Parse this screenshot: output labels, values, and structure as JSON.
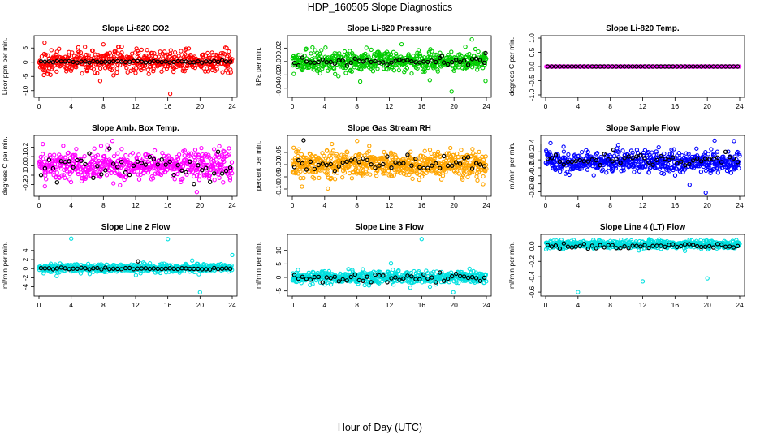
{
  "figure": {
    "title": "HDP_160505  Slope Diagnostics",
    "xlabel": "Hour of Day (UTC)"
  },
  "chart_data": [
    {
      "type": "scatter",
      "title": "Slope Li-820 CO2",
      "ylabel": "Licor ppm per min.",
      "xlim": [
        0,
        24
      ],
      "ylim": [
        -11.5,
        8.5
      ],
      "xticks": [
        0,
        4,
        8,
        12,
        16,
        20,
        24
      ],
      "yticks": [
        -10,
        -5,
        0,
        5
      ],
      "point_color": "#ff0000",
      "point_count": 520,
      "base": 0.3,
      "spread": 1.9,
      "outliers": [
        {
          "x": 0.7,
          "y": 6.9
        },
        {
          "x": 8.0,
          "y": 6.3
        },
        {
          "x": 0.6,
          "y": -4.5
        },
        {
          "x": 1.1,
          "y": -4.1
        },
        {
          "x": 3.4,
          "y": -3.2
        },
        {
          "x": 7.6,
          "y": -6.6
        },
        {
          "x": 12.0,
          "y": -3.8
        },
        {
          "x": 16.3,
          "y": -11.1
        },
        {
          "x": 18.6,
          "y": 4.8
        },
        {
          "x": 23.3,
          "y": 5.0
        }
      ],
      "summary_base": 0.2,
      "summary_spread": 0.2,
      "summary_spikes": []
    },
    {
      "type": "scatter",
      "title": "Slope Li-820 Pressure",
      "ylabel": "kPa per min.",
      "xlim": [
        0,
        24
      ],
      "ylim": [
        -0.05,
        0.035
      ],
      "xticks": [
        0,
        4,
        8,
        12,
        16,
        20,
        24
      ],
      "yticks": [
        -0.04,
        -0.02,
        0.0,
        0.02
      ],
      "point_color": "#00cc00",
      "point_count": 560,
      "base": 0.0,
      "spread": 0.007,
      "outliers": [
        {
          "x": 8.3,
          "y": -0.011
        },
        {
          "x": 8.4,
          "y": -0.03
        },
        {
          "x": 17.0,
          "y": -0.028
        },
        {
          "x": 19.7,
          "y": -0.045
        },
        {
          "x": 22.2,
          "y": 0.033
        },
        {
          "x": 23.9,
          "y": -0.029
        },
        {
          "x": 21.4,
          "y": 0.022
        },
        {
          "x": 2.5,
          "y": 0.021
        },
        {
          "x": 5.7,
          "y": -0.022
        }
      ],
      "summary_base": 0.0,
      "summary_spread": 0.003,
      "summary_spikes": [
        {
          "x": 23.9,
          "y": 0.0125
        },
        {
          "x": 18.5,
          "y": 0.008
        }
      ]
    },
    {
      "type": "scatter",
      "title": "Slope Li-820 Temp.",
      "ylabel": "degrees C per min.",
      "xlim": [
        0,
        24
      ],
      "ylim": [
        -1.0,
        1.0
      ],
      "xticks": [
        0,
        4,
        8,
        12,
        16,
        20,
        24
      ],
      "yticks": [
        -1.0,
        -0.5,
        0.0,
        0.5,
        1.0
      ],
      "point_color": "#ff00ff",
      "point_count": 220,
      "base": 0.0,
      "spread": 0.0,
      "outliers": [],
      "summary_base": 0.0,
      "summary_spread": 0.0,
      "summary_spikes": []
    },
    {
      "type": "scatter",
      "title": "Slope Amb. Box Temp.",
      "ylabel": "degrees C per min.",
      "xlim": [
        0,
        24
      ],
      "ylim": [
        -0.3,
        0.3
      ],
      "xticks": [
        0,
        4,
        8,
        12,
        16,
        20,
        24
      ],
      "yticks": [
        -0.2,
        -0.1,
        0.0,
        0.1,
        0.2
      ],
      "point_color": "#ff00ff",
      "point_count": 560,
      "base": 0.0,
      "spread": 0.08,
      "outliers": [
        {
          "x": 19.6,
          "y": -0.28
        },
        {
          "x": 8.5,
          "y": 0.22
        },
        {
          "x": 22.4,
          "y": 0.21
        }
      ],
      "summary_base": 0.0,
      "summary_spread": 0.07,
      "summary_spikes": []
    },
    {
      "type": "scatter",
      "title": "Slope Gas Stream RH",
      "ylabel": "percent per min.",
      "xlim": [
        0,
        24
      ],
      "ylim": [
        -0.12,
        0.11
      ],
      "xticks": [
        0,
        4,
        8,
        12,
        16,
        20,
        24
      ],
      "yticks": [
        -0.1,
        -0.05,
        0.0,
        0.05
      ],
      "point_color": "#ffa500",
      "point_count": 640,
      "base": 0.0,
      "spread": 0.025,
      "outliers": [
        {
          "x": 1.2,
          "y": -0.09
        },
        {
          "x": 4.4,
          "y": -0.098
        },
        {
          "x": 4.9,
          "y": 0.085
        },
        {
          "x": 23.6,
          "y": -0.08
        }
      ],
      "summary_base": 0.0,
      "summary_spread": 0.015,
      "summary_spikes": [
        {
          "x": 1.4,
          "y": 0.1
        }
      ]
    },
    {
      "type": "scatter",
      "title": "Slope Sample Flow",
      "ylabel": "ml/min per min.",
      "xlim": [
        0,
        24
      ],
      "ylim": [
        -0.85,
        0.55
      ],
      "xticks": [
        0,
        4,
        8,
        12,
        16,
        20,
        24
      ],
      "yticks": [
        -0.8,
        -0.6,
        -0.4,
        -0.2,
        0.0,
        0.2,
        0.4
      ],
      "point_color": "#0000ff",
      "point_count": 560,
      "base": -0.05,
      "spread": 0.13,
      "outliers": [
        {
          "x": 0.6,
          "y": 0.42
        },
        {
          "x": 19.8,
          "y": -0.82
        },
        {
          "x": 17.8,
          "y": -0.62
        },
        {
          "x": 20.9,
          "y": 0.48
        },
        {
          "x": 23.3,
          "y": 0.47
        }
      ],
      "summary_base": 0.0,
      "summary_spread": 0.08,
      "summary_spikes": [
        {
          "x": 8.4,
          "y": 0.25
        }
      ]
    },
    {
      "type": "scatter",
      "title": "Slope Line 2 Flow",
      "ylabel": "ml/min per min.",
      "xlim": [
        0,
        24
      ],
      "ylim": [
        -5.5,
        7.0
      ],
      "xticks": [
        0,
        4,
        8,
        12,
        16,
        20,
        24
      ],
      "yticks": [
        -4,
        -2,
        0,
        2,
        4
      ],
      "point_color": "#00e0e0",
      "point_count": 560,
      "base": 0.1,
      "spread": 0.45,
      "outliers": [
        {
          "x": 4.0,
          "y": 6.6
        },
        {
          "x": 16.0,
          "y": 6.5
        },
        {
          "x": 20.0,
          "y": -5.2
        },
        {
          "x": 24.0,
          "y": 3.0
        },
        {
          "x": 2.2,
          "y": -1.6
        }
      ],
      "summary_base": 0.0,
      "summary_spread": 0.1,
      "summary_spikes": [
        {
          "x": 12.3,
          "y": 1.6
        }
      ]
    },
    {
      "type": "scatter",
      "title": "Slope Line 3 Flow",
      "ylabel": "ml/min per min.",
      "xlim": [
        0,
        24
      ],
      "ylim": [
        -6.0,
        15.0
      ],
      "xticks": [
        0,
        4,
        8,
        12,
        16,
        20,
        24
      ],
      "yticks": [
        -5,
        0,
        5,
        10
      ],
      "point_color": "#00e0e0",
      "point_count": 560,
      "base": 0.0,
      "spread": 1.1,
      "outliers": [
        {
          "x": 16.0,
          "y": 14.2
        },
        {
          "x": 12.2,
          "y": 5.2
        },
        {
          "x": 19.9,
          "y": -5.5
        },
        {
          "x": 14.6,
          "y": -3.8
        }
      ],
      "summary_base": 0.0,
      "summary_spread": 0.8,
      "summary_spikes": []
    },
    {
      "type": "scatter",
      "title": "Slope Line 4 (LT) Flow",
      "ylabel": "ml/min per min.",
      "xlim": [
        0,
        24
      ],
      "ylim": [
        -0.62,
        0.12
      ],
      "xticks": [
        0,
        4,
        8,
        12,
        16,
        20,
        24
      ],
      "yticks": [
        -0.6,
        -0.4,
        -0.2,
        0.0
      ],
      "point_color": "#00e0e0",
      "point_count": 560,
      "base": 0.02,
      "spread": 0.025,
      "outliers": [
        {
          "x": 4.0,
          "y": -0.6
        },
        {
          "x": 12.0,
          "y": -0.46
        },
        {
          "x": 20.0,
          "y": -0.42
        }
      ],
      "summary_base": 0.0,
      "summary_spread": 0.02,
      "summary_spikes": []
    }
  ]
}
